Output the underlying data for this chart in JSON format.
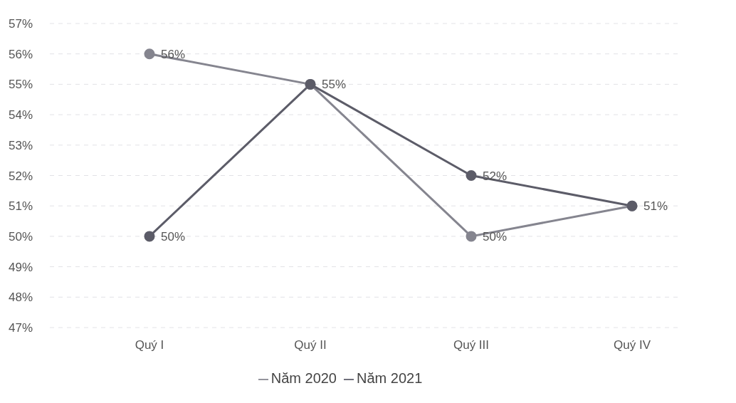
{
  "chart_data": {
    "type": "line",
    "categories": [
      "Quý I",
      "Quý II",
      "Quý III",
      "Quý IV"
    ],
    "series": [
      {
        "name": "Năm 2020",
        "color": "#85858f",
        "values": [
          56,
          55,
          50,
          51
        ],
        "value_labels": [
          "56%",
          "55%",
          "50%",
          "51%"
        ]
      },
      {
        "name": "Năm 2021",
        "color": "#5c5c68",
        "values": [
          50,
          55,
          52,
          51
        ],
        "value_labels": [
          "50%",
          null,
          "52%",
          null
        ]
      }
    ],
    "ylim": [
      47,
      57
    ],
    "yticks": [
      {
        "value": 47,
        "label": "47%"
      },
      {
        "value": 48,
        "label": "48%"
      },
      {
        "value": 49,
        "label": "49%"
      },
      {
        "value": 50,
        "label": "50%"
      },
      {
        "value": 51,
        "label": "51%"
      },
      {
        "value": 52,
        "label": "52%"
      },
      {
        "value": 53,
        "label": "53%"
      },
      {
        "value": 54,
        "label": "54%"
      },
      {
        "value": 55,
        "label": "55%"
      },
      {
        "value": 56,
        "label": "56%"
      },
      {
        "value": 57,
        "label": "57%"
      }
    ],
    "grid": "y",
    "legend": "bottom",
    "marker": "circle",
    "line_style": "solid"
  }
}
